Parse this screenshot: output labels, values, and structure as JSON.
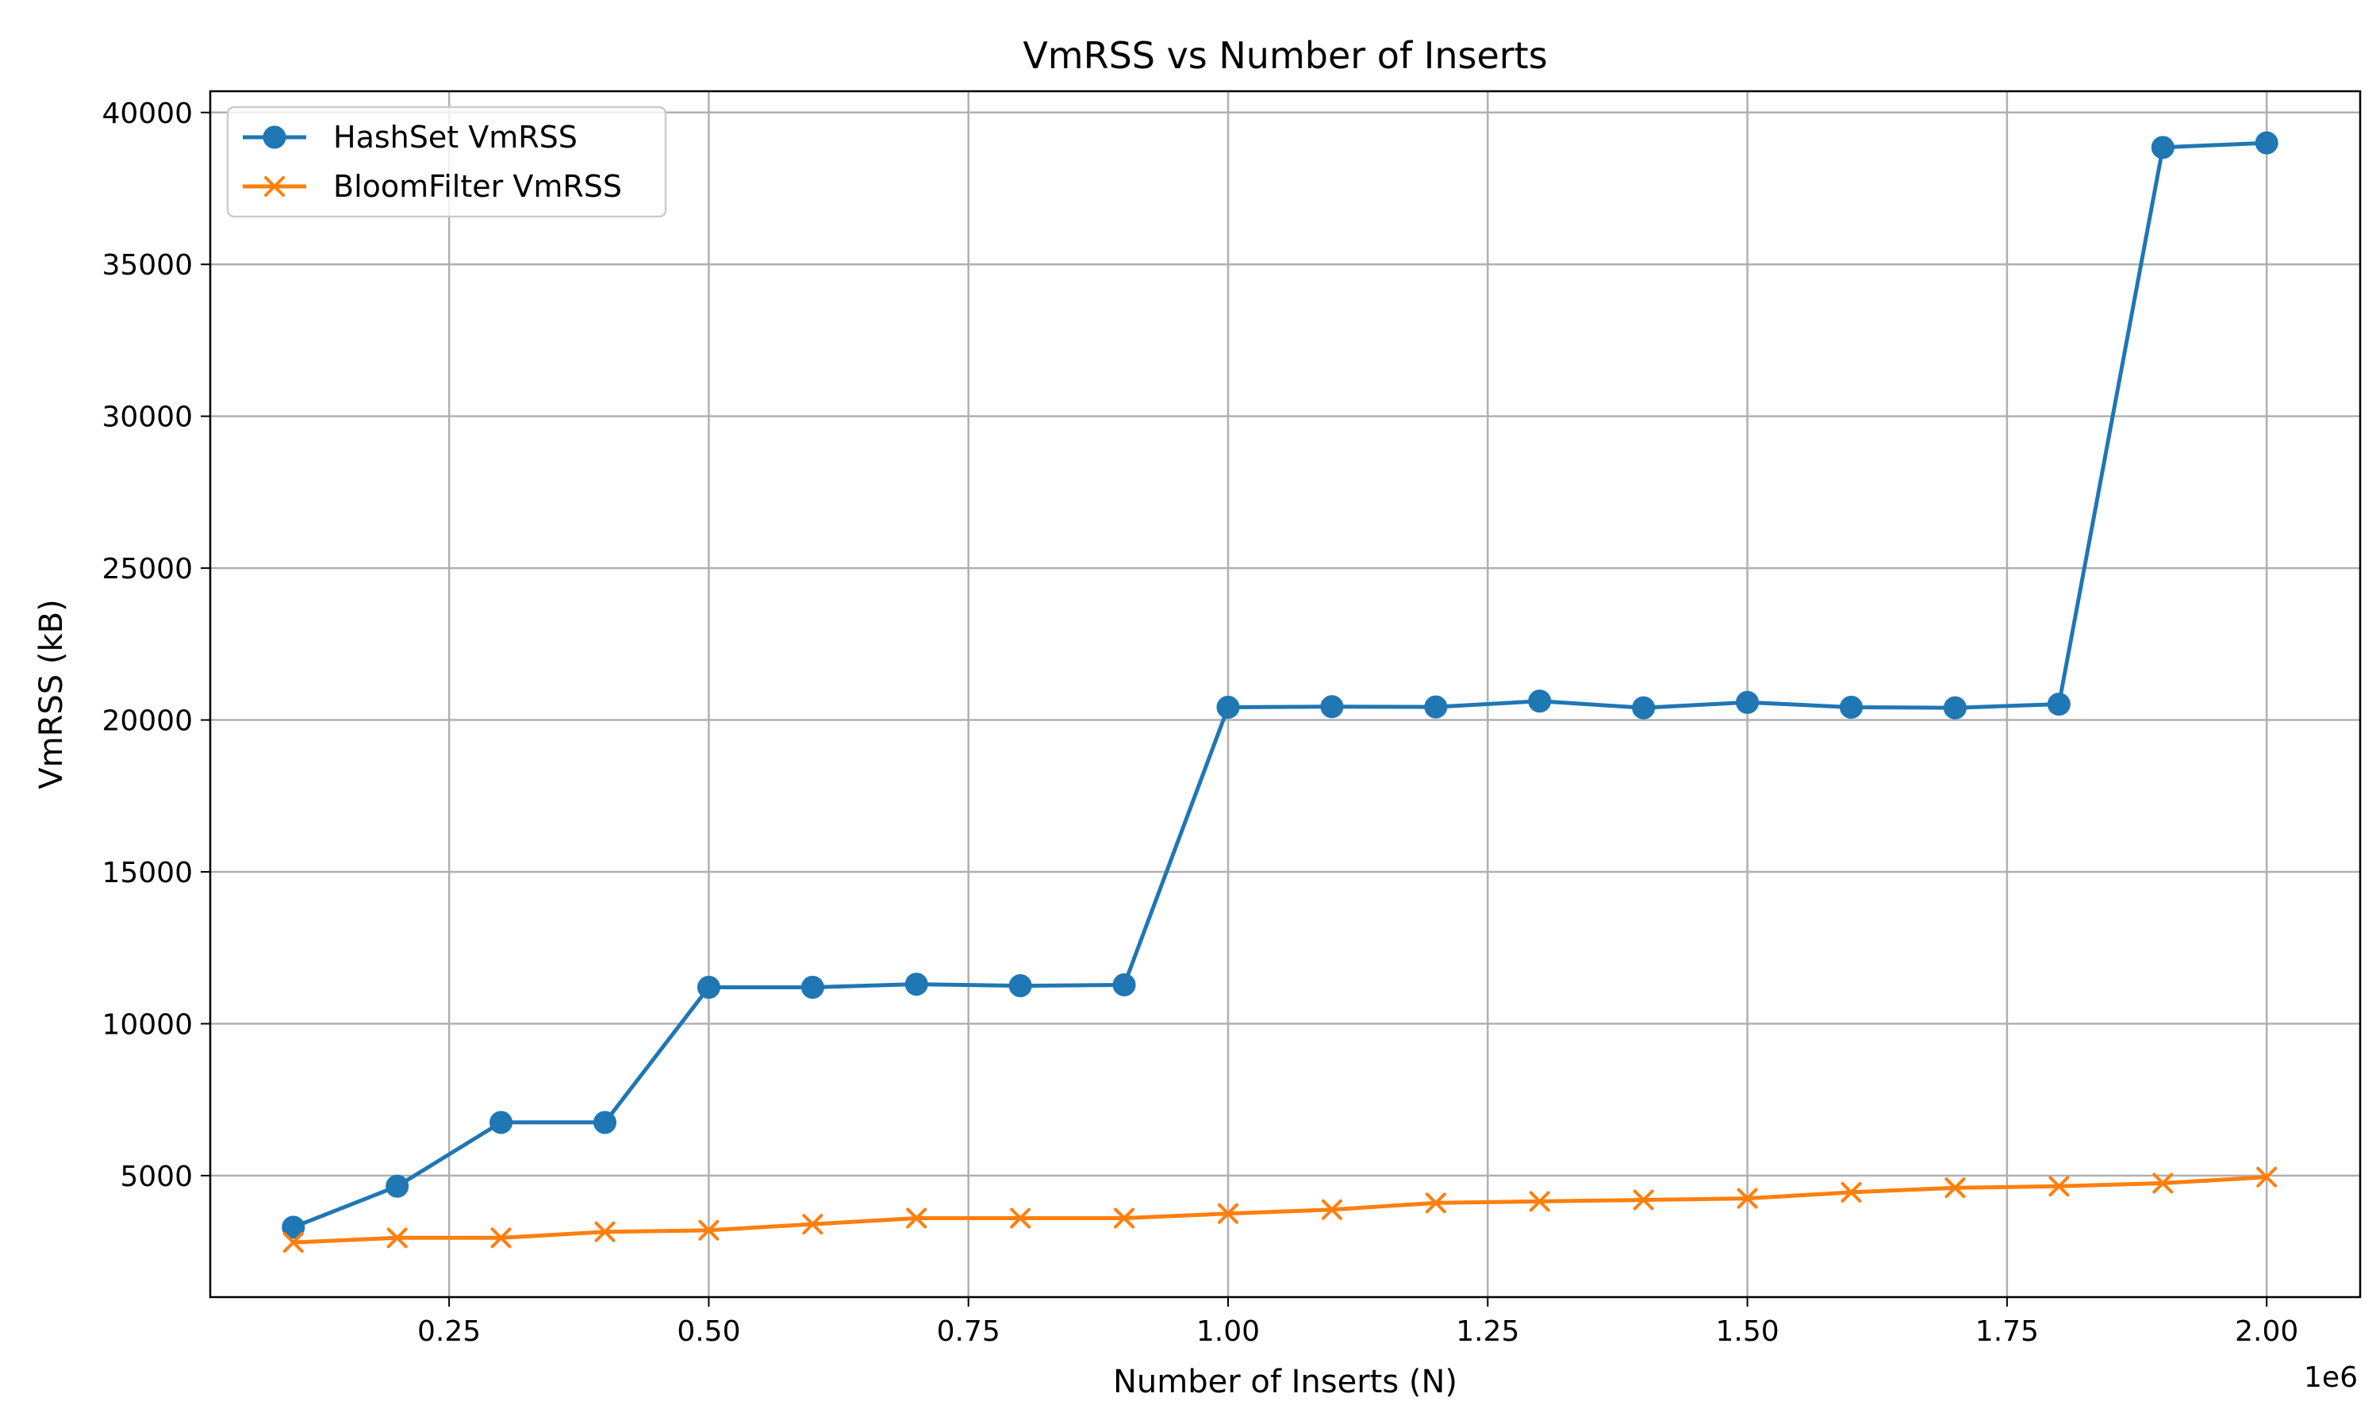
{
  "chart_data": {
    "type": "line",
    "title": "VmRSS vs Number of Inserts",
    "xlabel": "Number of Inserts (N)",
    "ylabel": "VmRSS (kB)",
    "x_offset_label": "1e6",
    "xlim": [
      0.02,
      2.09
    ],
    "ylim": [
      1000,
      40700
    ],
    "x_ticks": [
      0.25,
      0.5,
      0.75,
      1.0,
      1.25,
      1.5,
      1.75,
      2.0
    ],
    "x_tick_labels": [
      "0.25",
      "0.50",
      "0.75",
      "1.00",
      "1.25",
      "1.50",
      "1.75",
      "2.00"
    ],
    "y_ticks": [
      5000,
      10000,
      15000,
      20000,
      25000,
      30000,
      35000,
      40000
    ],
    "y_tick_labels": [
      "5000",
      "10000",
      "15000",
      "20000",
      "25000",
      "30000",
      "35000",
      "40000"
    ],
    "grid": true,
    "legend_position": "top-left",
    "x": [
      0.1,
      0.2,
      0.3,
      0.4,
      0.5,
      0.6,
      0.7,
      0.8,
      0.9,
      1.0,
      1.1,
      1.2,
      1.3,
      1.4,
      1.5,
      1.6,
      1.7,
      1.8,
      1.9,
      2.0
    ],
    "series": [
      {
        "name": "HashSet VmRSS",
        "color": "#1f77b4",
        "marker": "circle",
        "values": [
          3300,
          4650,
          6750,
          6750,
          11200,
          11200,
          11300,
          11250,
          11280,
          20420,
          20440,
          20430,
          20620,
          20400,
          20580,
          20420,
          20400,
          20520,
          38850,
          39000
        ]
      },
      {
        "name": "BloomFilter VmRSS",
        "color": "#ff7f0e",
        "marker": "x",
        "values": [
          2800,
          2950,
          2950,
          3150,
          3200,
          3400,
          3600,
          3600,
          3600,
          3750,
          3880,
          4100,
          4150,
          4200,
          4250,
          4450,
          4600,
          4650,
          4750,
          4950
        ]
      }
    ]
  }
}
